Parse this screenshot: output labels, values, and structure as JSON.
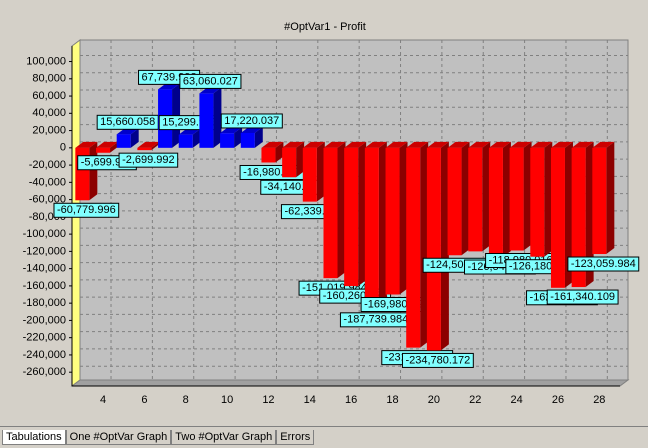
{
  "chart_data": {
    "type": "bar3d",
    "title": "#OptVar1 - Profit",
    "x": [
      3,
      4,
      5,
      6,
      7,
      8,
      9,
      10,
      11,
      12,
      13,
      14,
      15,
      16,
      17,
      18,
      19,
      20,
      21,
      22,
      23,
      24,
      25,
      26,
      27,
      28
    ],
    "values": [
      -60779.996,
      -5699.947,
      15660.058,
      -2699.992,
      67739.992,
      15299.923,
      63060.027,
      17000,
      17220.037,
      -16980.107,
      -34140.031,
      -62339.941,
      -151019.984,
      -160260.078,
      -187739.984,
      -169980.094,
      -231540.156,
      -234780.172,
      -124500.156,
      -120000,
      -126540.023,
      -118980.016,
      -126180.086,
      -162180.109,
      -161340.109,
      -123059.984
    ],
    "value_labels": [
      "-60,779.996",
      "-5,699.947",
      "15,660.058",
      "-2,699.992",
      "67,739.992",
      "15,299.923",
      "63,060.027",
      null,
      "17,220.037",
      "-16,980.107",
      "-34,140.031",
      "-62,339.941",
      "-151,019.984",
      "-160,260.078",
      "-187,739.984",
      "-169,980.094",
      "-231,540.156",
      "-234,780.172",
      "-124,500.156",
      null,
      "-126,540.023",
      "-118,980.016",
      "-126,180.086",
      "-162,180.109",
      "-161,340.109",
      "-123,059.984"
    ],
    "positive_color": "#0000ff",
    "negative_color": "#ff0000",
    "xlim": [
      2.5,
      29
    ],
    "xticks": [
      4,
      6,
      8,
      10,
      12,
      14,
      16,
      18,
      20,
      22,
      24,
      26,
      28
    ],
    "ylim": [
      -276000,
      118000
    ],
    "yticks": [
      {
        "value": 100000,
        "label": "100,000"
      },
      {
        "value": 80000,
        "label": "80,000"
      },
      {
        "value": 60000,
        "label": "60,000"
      },
      {
        "value": 40000,
        "label": "40,000"
      },
      {
        "value": 20000,
        "label": "20,000"
      },
      0,
      {
        "value": -20000,
        "label": "-20,000"
      },
      {
        "value": -40000,
        "label": "-40,000"
      },
      {
        "value": -60000,
        "label": "-60,000"
      },
      {
        "value": -80000,
        "label": "-80,000"
      },
      {
        "value": -100000,
        "label": "-100,000"
      },
      {
        "value": -120000,
        "label": "-120,000"
      },
      {
        "value": -140000,
        "label": "-140,000"
      },
      {
        "value": -160000,
        "label": "-160,000"
      },
      {
        "value": -180000,
        "label": "-180,000"
      },
      {
        "value": -200000,
        "label": "-200,000"
      },
      {
        "value": -220000,
        "label": "-220,000"
      },
      {
        "value": -240000,
        "label": "-240,000"
      },
      {
        "value": -260000,
        "label": "-260,000"
      }
    ],
    "grid": true
  },
  "tabs": [
    "Tabulations",
    "One #OptVar Graph",
    "Two #OptVar Graph",
    "Errors"
  ]
}
